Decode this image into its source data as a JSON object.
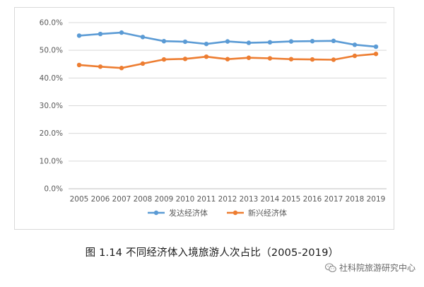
{
  "chart_data": {
    "type": "line",
    "categories": [
      "2005",
      "2006",
      "2007",
      "2008",
      "2009",
      "2010",
      "2011",
      "2012",
      "2013",
      "2014",
      "2015",
      "2016",
      "2017",
      "2018",
      "2019"
    ],
    "series": [
      {
        "name": "发达经济体",
        "color": "#5b9bd5",
        "values": [
          55.3,
          55.9,
          56.4,
          54.8,
          53.3,
          53.1,
          52.3,
          53.2,
          52.7,
          52.9,
          53.2,
          53.3,
          53.4,
          52.0,
          51.3
        ]
      },
      {
        "name": "新兴经济体",
        "color": "#ed7d31",
        "values": [
          44.7,
          44.1,
          43.6,
          45.2,
          46.7,
          46.9,
          47.7,
          46.8,
          47.3,
          47.1,
          46.8,
          46.7,
          46.6,
          48.0,
          48.7
        ]
      }
    ],
    "ylim": [
      0,
      60
    ],
    "y_ticks": [
      "0.0%",
      "10.0%",
      "20.0%",
      "30.0%",
      "40.0%",
      "50.0%",
      "60.0%"
    ],
    "y_tick_values": [
      0,
      10,
      20,
      30,
      40,
      50,
      60
    ],
    "grid": true,
    "legend_position": "bottom"
  },
  "caption": "图 1.14 不同经济体入境旅游人次占比（2005-2019）",
  "watermark": {
    "text": "社科院旅游研究中心",
    "icon": "wechat-icon"
  }
}
